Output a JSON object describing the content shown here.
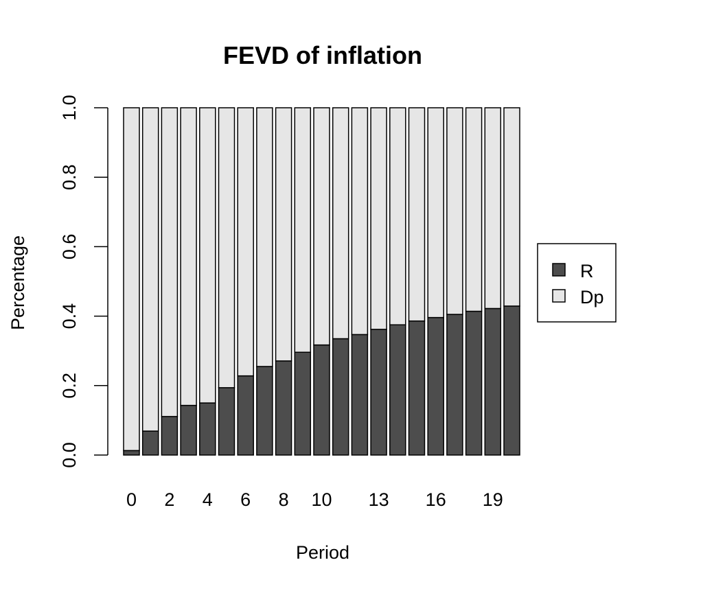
{
  "chart_data": {
    "type": "bar",
    "stacked": true,
    "title": "FEVD of inflation",
    "xlabel": "Period",
    "ylabel": "Percentage",
    "ylim": [
      0,
      1
    ],
    "y_ticks": [
      "0.0",
      "0.2",
      "0.4",
      "0.6",
      "0.8",
      "1.0"
    ],
    "y_tick_values": [
      0,
      0.2,
      0.4,
      0.6,
      0.8,
      1.0
    ],
    "categories": [
      "0",
      "1",
      "2",
      "3",
      "4",
      "5",
      "6",
      "7",
      "8",
      "9",
      "10",
      "11",
      "12",
      "13",
      "14",
      "15",
      "16",
      "17",
      "18",
      "19",
      "20"
    ],
    "x_tick_labels": [
      "0",
      "",
      "2",
      "",
      "4",
      "",
      "6",
      "",
      "8",
      "",
      "10",
      "",
      "",
      "13",
      "",
      "",
      "16",
      "",
      "",
      "19",
      ""
    ],
    "series": [
      {
        "name": "R",
        "color": "#4d4d4d",
        "values": [
          0.013,
          0.069,
          0.111,
          0.143,
          0.15,
          0.194,
          0.228,
          0.255,
          0.271,
          0.296,
          0.317,
          0.335,
          0.347,
          0.362,
          0.375,
          0.386,
          0.396,
          0.405,
          0.414,
          0.422,
          0.429
        ]
      },
      {
        "name": "Dp",
        "color": "#e6e6e6",
        "values": [
          0.987,
          0.931,
          0.889,
          0.857,
          0.85,
          0.806,
          0.772,
          0.745,
          0.729,
          0.704,
          0.683,
          0.665,
          0.653,
          0.638,
          0.625,
          0.614,
          0.604,
          0.595,
          0.586,
          0.578,
          0.571
        ]
      }
    ],
    "legend": {
      "position": "right",
      "entries": [
        "R",
        "Dp"
      ]
    },
    "grid": false
  }
}
